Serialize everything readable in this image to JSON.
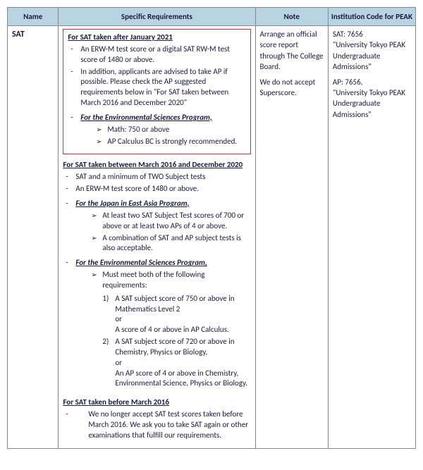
{
  "colors": {
    "header_bg": "#b8d4e3",
    "border": "#888888",
    "text": "#1a1a3a",
    "red_box_border": "#d03030",
    "background": "#ffffff"
  },
  "typography": {
    "font_family": "Calibri",
    "base_fontsize_pt": 11,
    "header_fontsize_pt": 11,
    "name_fontsize_pt": 12
  },
  "headers": {
    "name": "Name",
    "requirements": "Specific Requirements",
    "note": "Note",
    "code": "Institution Code for PEAK"
  },
  "row": {
    "name": "SAT",
    "section1": {
      "title": "For SAT taken after January 2021",
      "bullets": [
        "An ERW-M test score or a digital SAT RW-M test score of 1480 or above.",
        "In addition, applicants are advised to take AP if possible. Please check the AP suggested requirements below in \"For SAT taken between March 2016 and December 2020\""
      ],
      "program": {
        "title": "For the Environmental Sciences Program,",
        "items": [
          "Math: 750 or above",
          "AP Calculus BC is strongly recommended."
        ]
      }
    },
    "section2": {
      "title": "For SAT taken between March 2016 and December 2020",
      "bullets": [
        "SAT and a minimum of TWO Subject tests",
        "An ERW-M test score of 1480 or above."
      ],
      "programA": {
        "title": "For the Japan in East Asia Program,",
        "items": [
          "At least two SAT Subject Test scores of 700 or above or at least two APs of 4 or above.",
          "A combination of SAT and AP subject tests is also acceptable."
        ]
      },
      "programB": {
        "title": "For the Environmental Sciences Program,",
        "lead": "Must meet both of the following requirements:",
        "req1a": "A SAT subject score of 750 or above in Mathematics Level 2",
        "or": "or",
        "req1b": "A score of 4 or above in AP Calculus.",
        "req2a": "A SAT subject score of 720 or above in Chemistry, Physics or Biology,",
        "req2b": "An AP score of 4 or above in Chemistry, Environmental Science, Physics or Biology."
      }
    },
    "section3": {
      "title": "For SAT taken before March 2016",
      "bullet": "We no longer accept SAT test scores taken before March 2016. We ask you to take SAT again or other examinations that fulfill our requirements."
    },
    "note": {
      "p1": "Arrange an official score report through The College Board.",
      "p2": "We do not accept Superscore."
    },
    "code": {
      "sat_label": "SAT: 7656",
      "sat_text": "\"University Tokyo PEAK Undergraduate Admissions\"",
      "ap_label": "AP: 7656,",
      "ap_text": "\"University Tokyo PEAK Undergraduate Admissions\""
    }
  }
}
